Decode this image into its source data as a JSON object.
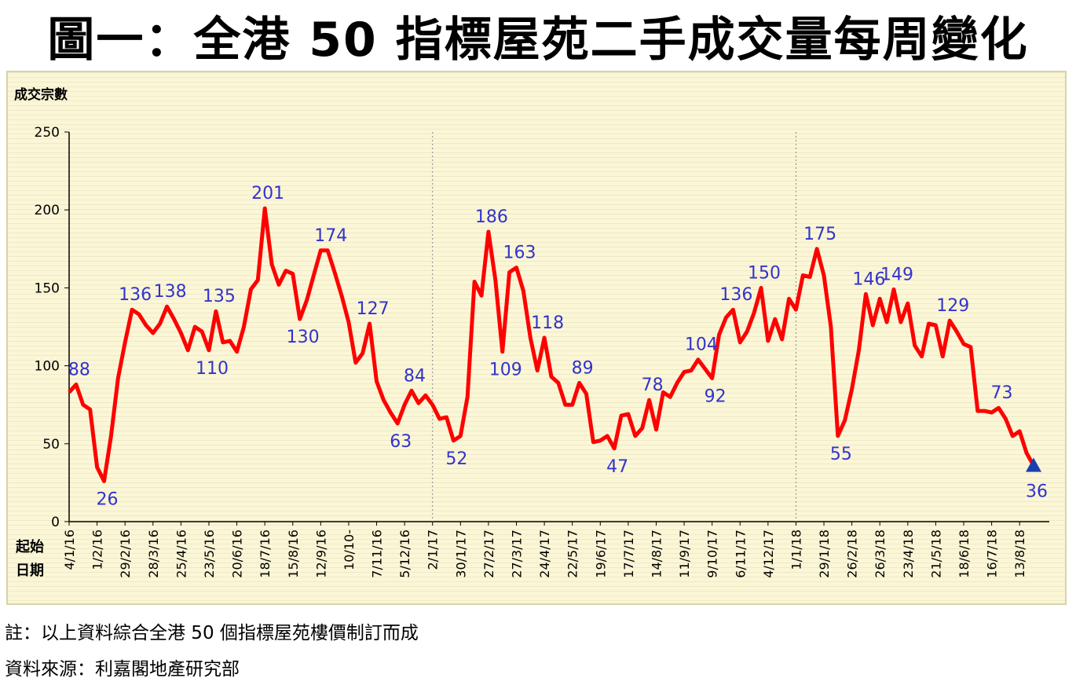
{
  "title": "圖一：全港 50 指標屋苑二手成交量每周變化",
  "note": "註：以上資料綜合全港 50 個指標屋苑樓價制訂而成",
  "source": "資料來源：利嘉閣地產研究部",
  "chart_data": {
    "type": "line",
    "ylabel": "成交宗數",
    "xlabel": [
      "起始",
      "日期"
    ],
    "ylim": [
      0,
      250
    ],
    "yticks": [
      0,
      50,
      100,
      150,
      200,
      250
    ],
    "line_color": "#ff0000",
    "label_color": "#3333cc",
    "marker_color": "#1a3fb0",
    "grid": false,
    "year_dividers": [
      "2/1/17",
      "1/1/18"
    ],
    "xtick_labels": [
      "4/1/16",
      "1/2/16",
      "29/2/16",
      "28/3/16",
      "25/4/16",
      "23/5/16",
      "20/6/16",
      "18/7/16",
      "15/8/16",
      "12/9/16",
      "10/10-",
      "7/11/16",
      "5/12/16",
      "2/1/17",
      "30/1/17",
      "27/2/17",
      "27/3/17",
      "24/4/17",
      "22/5/17",
      "19/6/17",
      "17/7/17",
      "14/8/17",
      "11/9/17",
      "9/10/17",
      "6/11/17",
      "4/12/17",
      "1/1/18",
      "29/1/18",
      "26/2/18",
      "26/3/18",
      "23/4/18",
      "21/5/18",
      "18/6/18",
      "16/7/18",
      "13/8/18"
    ],
    "values": [
      83,
      88,
      75,
      72,
      35,
      26,
      55,
      92,
      115,
      136,
      133,
      126,
      121,
      127,
      138,
      130,
      121,
      110,
      125,
      122,
      110,
      135,
      115,
      116,
      109,
      125,
      149,
      155,
      201,
      165,
      152,
      161,
      159,
      130,
      142,
      158,
      174,
      174,
      160,
      145,
      128,
      102,
      108,
      127,
      90,
      78,
      70,
      63,
      75,
      84,
      76,
      81,
      75,
      66,
      67,
      52,
      55,
      80,
      154,
      145,
      186,
      155,
      109,
      160,
      163,
      148,
      118,
      97,
      118,
      93,
      89,
      75,
      75,
      89,
      82,
      51,
      52,
      55,
      47,
      68,
      69,
      55,
      60,
      78,
      59,
      83,
      80,
      89,
      96,
      97,
      104,
      98,
      92,
      120,
      131,
      136,
      115,
      122,
      134,
      150,
      116,
      130,
      117,
      143,
      136,
      158,
      157,
      175,
      158,
      125,
      55,
      65,
      85,
      110,
      146,
      126,
      143,
      128,
      149,
      128,
      140,
      113,
      106,
      127,
      126,
      106,
      129,
      122,
      114,
      112,
      71,
      71,
      70,
      73,
      66,
      55,
      58,
      44,
      36
    ],
    "point_labels": [
      {
        "i": 1,
        "text": "88",
        "pos": "above"
      },
      {
        "i": 5,
        "text": "26",
        "pos": "below"
      },
      {
        "i": 9,
        "text": "136",
        "pos": "above"
      },
      {
        "i": 14,
        "text": "138",
        "pos": "above"
      },
      {
        "i": 20,
        "text": "110",
        "pos": "below"
      },
      {
        "i": 21,
        "text": "135",
        "pos": "above"
      },
      {
        "i": 28,
        "text": "201",
        "pos": "above"
      },
      {
        "i": 33,
        "text": "130",
        "pos": "below"
      },
      {
        "i": 37,
        "text": "174",
        "pos": "above"
      },
      {
        "i": 43,
        "text": "127",
        "pos": "above"
      },
      {
        "i": 47,
        "text": "63",
        "pos": "below"
      },
      {
        "i": 49,
        "text": "84",
        "pos": "above"
      },
      {
        "i": 55,
        "text": "52",
        "pos": "below"
      },
      {
        "i": 60,
        "text": "186",
        "pos": "above"
      },
      {
        "i": 62,
        "text": "109",
        "pos": "below"
      },
      {
        "i": 64,
        "text": "163",
        "pos": "above"
      },
      {
        "i": 68,
        "text": "118",
        "pos": "above"
      },
      {
        "i": 73,
        "text": "89",
        "pos": "above"
      },
      {
        "i": 78,
        "text": "47",
        "pos": "below"
      },
      {
        "i": 83,
        "text": "78",
        "pos": "above"
      },
      {
        "i": 90,
        "text": "104",
        "pos": "above"
      },
      {
        "i": 92,
        "text": "92",
        "pos": "below"
      },
      {
        "i": 95,
        "text": "136",
        "pos": "above"
      },
      {
        "i": 99,
        "text": "150",
        "pos": "above"
      },
      {
        "i": 107,
        "text": "175",
        "pos": "above"
      },
      {
        "i": 110,
        "text": "55",
        "pos": "below"
      },
      {
        "i": 114,
        "text": "146",
        "pos": "above"
      },
      {
        "i": 118,
        "text": "149",
        "pos": "above"
      },
      {
        "i": 126,
        "text": "129",
        "pos": "above"
      },
      {
        "i": 133,
        "text": "73",
        "pos": "above"
      },
      {
        "i": 138,
        "text": "36",
        "pos": "below"
      }
    ]
  }
}
